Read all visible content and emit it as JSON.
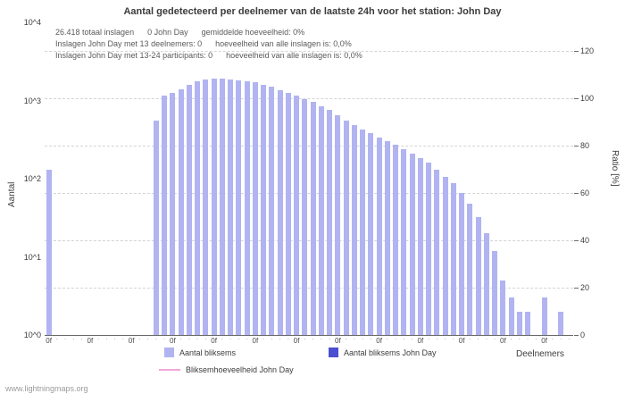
{
  "title": "Aantal gedetecteerd per deelnemer van de laatste 24h voor het station: John Day",
  "watermark": "www.lightningmaps.org",
  "axes": {
    "left_label": "Aantal",
    "right_label": "Ratio [%]",
    "x_label": "Deelnemers"
  },
  "annotations": {
    "line1": "26.418 totaal inslagen      0 John Day      gemiddelde hoeveelheid: 0%",
    "line2": "Inslagen John Day met 13 deelnemers: 0      hoeveelheid van alle inslagen is: 0,0%",
    "line3": "Inslagen John Day met 13-24 participants: 0      hoeveelheid van alle inslagen is: 0,0%"
  },
  "legend": {
    "items": [
      {
        "label": "Aantal bliksems",
        "color": "#b1b4f1",
        "type": "square"
      },
      {
        "label": "Aantal bliksems John Day",
        "color": "#4b4fd2",
        "type": "square"
      },
      {
        "label": "Bliksemhoeveelheid John Day",
        "color": "#f0a6da",
        "type": "line"
      }
    ]
  },
  "chart_data": {
    "type": "bar",
    "title": "Aantal gedetecteerd per deelnemer van de laatste 24h voor het station: John Day",
    "xlabel": "Deelnemers",
    "ylabel_left": "Aantal",
    "ylabel_right": "Ratio [%]",
    "y_left_scale": "log",
    "y_left_max_exp": 4,
    "y_left_ticks": [
      "10^4",
      "10^3",
      "10^2",
      "10^1",
      "10^0"
    ],
    "y_right_ticks": [
      120,
      100,
      80,
      60,
      40,
      20,
      0
    ],
    "y_right_max": 132,
    "x_tick_label": "0f",
    "x_tick_every": 5,
    "grid": true,
    "legend_position": "bottom",
    "totals": {
      "totaal_inslagen": "26.418",
      "john_day_inslagen": 0,
      "gemiddelde_hoeveelheid_pct": "0%"
    },
    "series": [
      {
        "name": "Aantal bliksems",
        "color": "#b1b4f1",
        "values": [
          130,
          0,
          0,
          0,
          0,
          0,
          0,
          0,
          0,
          0,
          0,
          0,
          0,
          550,
          1150,
          1250,
          1400,
          1600,
          1750,
          1850,
          1900,
          1900,
          1850,
          1800,
          1750,
          1700,
          1600,
          1500,
          1350,
          1250,
          1150,
          1050,
          950,
          850,
          750,
          650,
          560,
          480,
          420,
          380,
          340,
          300,
          270,
          240,
          210,
          185,
          160,
          130,
          105,
          88,
          65,
          48,
          32,
          20,
          12,
          5,
          3,
          2,
          2,
          0,
          3,
          0,
          2,
          0
        ]
      },
      {
        "name": "Aantal bliksems John Day",
        "color": "#4b4fd2",
        "all_zero": true
      },
      {
        "name": "Bliksemhoeveelheid John Day",
        "color": "#f0a6da",
        "line": true,
        "all_zero": true
      }
    ]
  }
}
